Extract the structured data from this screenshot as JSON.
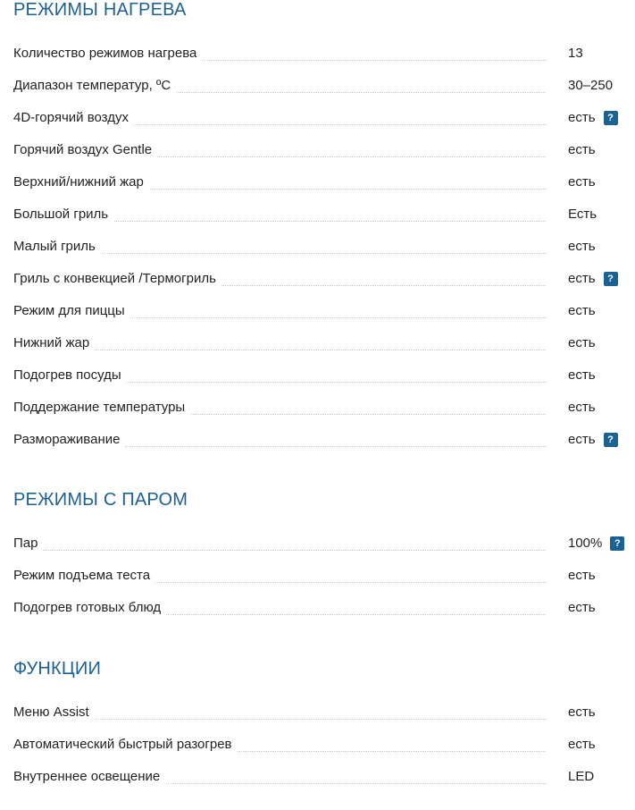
{
  "sections": [
    {
      "title": "РЕЖИМЫ НАГРЕВА",
      "rows": [
        {
          "label": "Количество режимов нагрева",
          "value": "13",
          "help": false
        },
        {
          "label": "Диапазон температур, ºС",
          "value": "30–250",
          "help": false
        },
        {
          "label": "4D-горячий воздух",
          "value": "есть",
          "help": true
        },
        {
          "label": "Горячий воздух Gentle",
          "value": "есть",
          "help": false
        },
        {
          "label": "Верхний/нижний жар",
          "value": "есть",
          "help": false
        },
        {
          "label": "Большой гриль",
          "value": "Есть",
          "help": false
        },
        {
          "label": "Малый гриль",
          "value": "есть",
          "help": false
        },
        {
          "label": "Гриль с конвекцией /Термогриль",
          "value": "есть",
          "help": true
        },
        {
          "label": "Режим для пиццы",
          "value": "есть",
          "help": false
        },
        {
          "label": "Нижний жар",
          "value": "есть",
          "help": false
        },
        {
          "label": "Подогрев посуды",
          "value": "есть",
          "help": false
        },
        {
          "label": "Поддержание температуры",
          "value": "есть",
          "help": false
        },
        {
          "label": "Размораживание",
          "value": "есть",
          "help": true
        }
      ]
    },
    {
      "title": "РЕЖИМЫ С ПАРОМ",
      "rows": [
        {
          "label": "Пар",
          "value": "100%",
          "help": true
        },
        {
          "label": "Режим подъема теста",
          "value": "есть",
          "help": false
        },
        {
          "label": "Подогрев готовых блюд",
          "value": "есть",
          "help": false
        }
      ]
    },
    {
      "title": "ФУНКЦИИ",
      "rows": [
        {
          "label": "Меню Assist",
          "value": "есть",
          "help": false
        },
        {
          "label": "Автоматический быстрый разогрев",
          "value": "есть",
          "help": false
        },
        {
          "label": "Внутреннее освещение",
          "value": "LED",
          "help": false
        }
      ]
    }
  ],
  "help_badge_text": "?",
  "colors": {
    "heading": "#1d6193",
    "badge": "#1d6193",
    "text": "#222222",
    "leader": "#c8c8c8"
  }
}
